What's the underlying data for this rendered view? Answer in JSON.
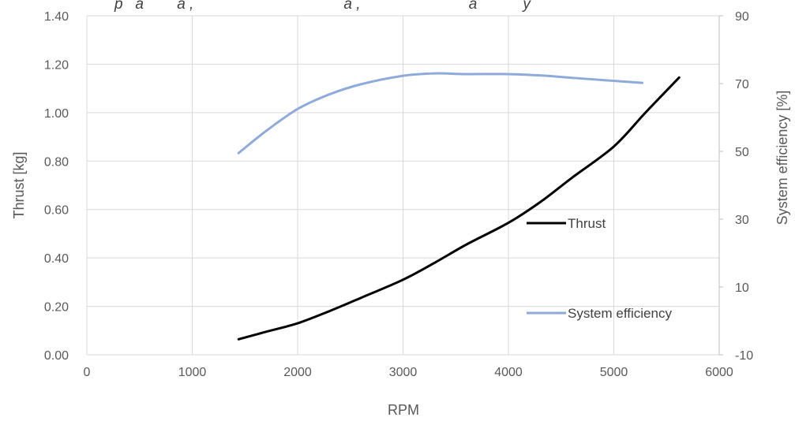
{
  "chart_data": {
    "type": "line",
    "title_fragment": "p   a        a ,                                    a ,                          a           y",
    "xlabel": "RPM",
    "ylabel_left": "Thrust [kg]",
    "ylabel_right": "System efficiency [%]",
    "xlim": [
      0,
      6000
    ],
    "x_ticks": [
      0,
      1000,
      2000,
      3000,
      4000,
      5000,
      6000
    ],
    "x_tick_labels": [
      "0",
      "1000",
      "2000",
      "3000",
      "4000",
      "5000",
      "6000"
    ],
    "ylim_left": [
      0,
      1.4
    ],
    "y_left_ticks": [
      0,
      0.2,
      0.4,
      0.6,
      0.8,
      1.0,
      1.2,
      1.4
    ],
    "y_left_tick_labels": [
      "0.00",
      "0.20",
      "0.40",
      "0.60",
      "0.80",
      "1.00",
      "1.20",
      "1.40"
    ],
    "ylim_right": [
      -10,
      90
    ],
    "y_right_ticks": [
      -10,
      10,
      30,
      50,
      70,
      90
    ],
    "y_right_tick_labels": [
      "-10",
      "10",
      "30",
      "50",
      "70",
      "90"
    ],
    "grid": true,
    "legend_position": "bottom-right",
    "series": [
      {
        "name": "Thrust",
        "axis": "left",
        "color": "#000000",
        "x": [
          1440,
          1700,
          2000,
          2300,
          2600,
          3000,
          3300,
          3600,
          4000,
          4300,
          4600,
          5000,
          5300,
          5620
        ],
        "y": [
          0.064,
          0.095,
          0.13,
          0.18,
          0.235,
          0.31,
          0.38,
          0.455,
          0.545,
          0.63,
          0.73,
          0.86,
          1.0,
          1.145
        ]
      },
      {
        "name": "System efficiency",
        "axis": "right",
        "color": "#8eaadb",
        "x": [
          1440,
          1700,
          2000,
          2300,
          2600,
          3000,
          3300,
          3600,
          4000,
          4300,
          4600,
          5000,
          5270
        ],
        "y": [
          49.5,
          56.0,
          62.5,
          66.8,
          69.8,
          72.3,
          73.0,
          72.8,
          72.8,
          72.4,
          71.7,
          70.8,
          70.2
        ]
      }
    ]
  }
}
